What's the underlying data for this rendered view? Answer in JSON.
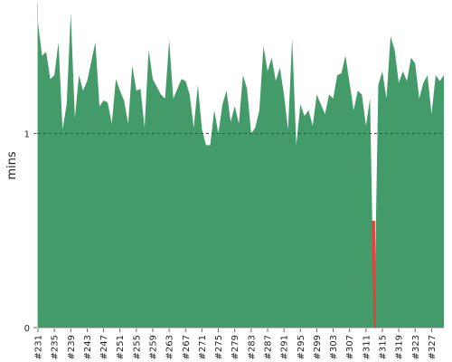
{
  "chart_data": {
    "type": "area",
    "title": "",
    "xlabel": "",
    "ylabel": "mins",
    "ylim": [
      0,
      1.65
    ],
    "yticks": [
      0,
      1
    ],
    "ytick_labels": [
      "0",
      "1"
    ],
    "reference_line": {
      "y": 1,
      "style": "dashed"
    },
    "colors": {
      "normal": "#449b6a",
      "failed": "#e8403a"
    },
    "x_start_build": 231,
    "x_labels": [
      "#231",
      "#235",
      "#239",
      "#243",
      "#247",
      "#251",
      "#255",
      "#259",
      "#263",
      "#267",
      "#271",
      "#275",
      "#279",
      "#283",
      "#287",
      "#291",
      "#295",
      "#299",
      "#303",
      "#307",
      "#311",
      "#315",
      "#319",
      "#323",
      "#327"
    ],
    "series": [
      {
        "name": "",
        "values": [
          1.57,
          1.4,
          1.42,
          1.28,
          1.3,
          1.47,
          1.02,
          1.15,
          1.62,
          1.08,
          1.3,
          1.22,
          1.27,
          1.37,
          1.47,
          1.14,
          1.17,
          1.16,
          1.05,
          1.28,
          1.22,
          1.17,
          1.05,
          1.35,
          1.22,
          1.23,
          1.03,
          1.43,
          1.28,
          1.24,
          1.2,
          1.18,
          1.48,
          1.18,
          1.23,
          1.28,
          1.27,
          1.2,
          1.03,
          1.25,
          1.02,
          0.94,
          0.94,
          1.12,
          1.0,
          1.15,
          1.22,
          1.06,
          1.14,
          1.05,
          1.3,
          1.23,
          1.0,
          1.03,
          1.12,
          1.45,
          1.32,
          1.39,
          1.27,
          1.34,
          1.2,
          1.02,
          1.49,
          0.94,
          1.15,
          1.09,
          1.12,
          1.04,
          1.2,
          1.15,
          1.1,
          1.2,
          1.18,
          1.3,
          1.31,
          1.4,
          1.26,
          1.12,
          1.22,
          1.2,
          1.04,
          1.18,
          0.0,
          1.25,
          1.32,
          1.18,
          1.5,
          1.43,
          1.26,
          1.32,
          1.27,
          1.39,
          1.36,
          1.18,
          1.26,
          1.3,
          1.1,
          1.3,
          1.27,
          1.3
        ]
      }
    ],
    "failed_indices": [
      82
    ]
  }
}
